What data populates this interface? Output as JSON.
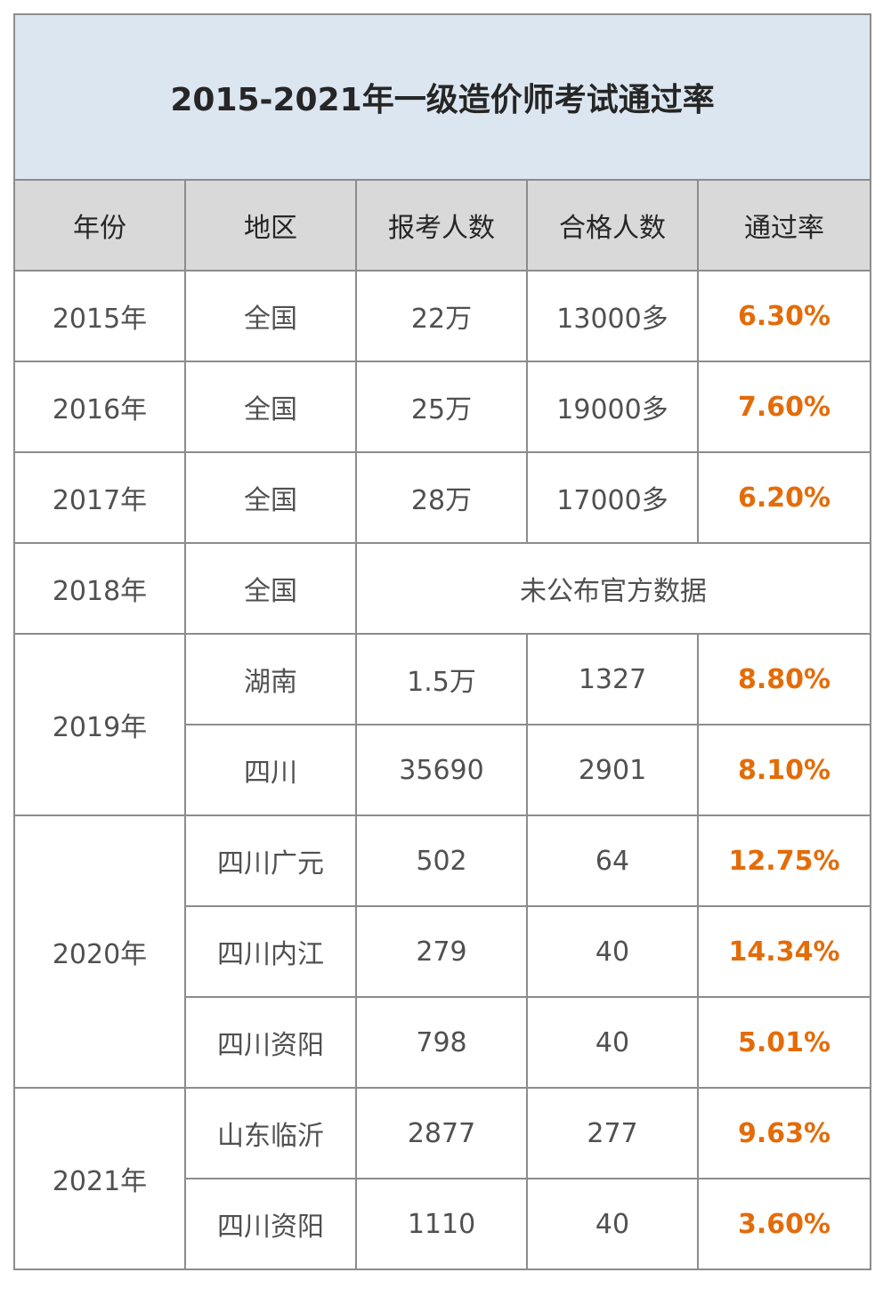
{
  "title": "2015-2021年一级造价师考试通过率",
  "headers": [
    "年份",
    "地区",
    "报考人数",
    "合格人数",
    "通过率"
  ],
  "rows": {
    "r2015": {
      "year": "2015年",
      "region": "全国",
      "applicants": "22万",
      "passed": "13000多",
      "rate": "6.30%"
    },
    "r2016": {
      "year": "2016年",
      "region": "全国",
      "applicants": "25万",
      "passed": "19000多",
      "rate": "7.60%"
    },
    "r2017": {
      "year": "2017年",
      "region": "全国",
      "applicants": "28万",
      "passed": "17000多",
      "rate": "6.20%"
    },
    "r2018": {
      "year": "2018年",
      "region": "全国",
      "note": "未公布官方数据"
    },
    "r2019": {
      "year": "2019年",
      "items": [
        {
          "region": "湖南",
          "applicants": "1.5万",
          "passed": "1327",
          "rate": "8.80%"
        },
        {
          "region": "四川",
          "applicants": "35690",
          "passed": "2901",
          "rate": "8.10%"
        }
      ]
    },
    "r2020": {
      "year": "2020年",
      "items": [
        {
          "region": "四川广元",
          "applicants": "502",
          "passed": "64",
          "rate": "12.75%"
        },
        {
          "region": "四川内江",
          "applicants": "279",
          "passed": "40",
          "rate": "14.34%"
        },
        {
          "region": "四川资阳",
          "applicants": "798",
          "passed": "40",
          "rate": "5.01%"
        }
      ]
    },
    "r2021": {
      "year": "2021年",
      "items": [
        {
          "region": "山东临沂",
          "applicants": "2877",
          "passed": "277",
          "rate": "9.63%"
        },
        {
          "region": "四川资阳",
          "applicants": "1110",
          "passed": "40",
          "rate": "3.60%"
        }
      ]
    }
  },
  "colors": {
    "title_bg": "#dce6f1",
    "header_bg": "#d9d9d9",
    "rate": "#e36c09",
    "border": "#8c8c8c"
  }
}
